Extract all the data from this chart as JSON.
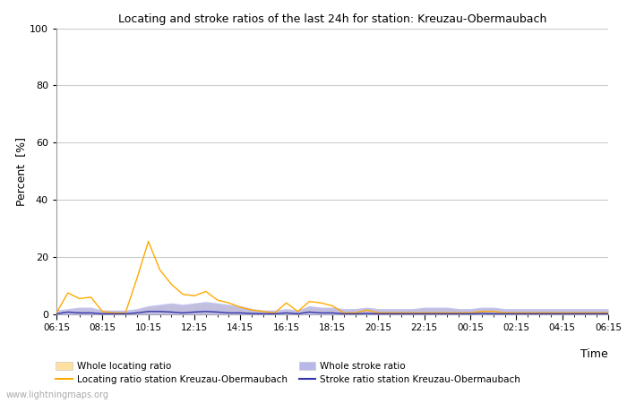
{
  "title": "Locating and stroke ratios of the last 24h for station: Kreuzau-Obermaubach",
  "xlabel": "Time",
  "ylabel": "Percent  [%]",
  "watermark": "www.lightningmaps.org",
  "x_ticks": [
    "06:15",
    "08:15",
    "10:15",
    "12:15",
    "14:15",
    "16:15",
    "18:15",
    "20:15",
    "22:15",
    "00:15",
    "02:15",
    "04:15",
    "06:15"
  ],
  "ylim": [
    0,
    100
  ],
  "yticks": [
    0,
    20,
    40,
    60,
    80,
    100
  ],
  "background_color": "#ffffff",
  "plot_bg_color": "#ffffff",
  "grid_color": "#cccccc",
  "locating_line_color": "#ffaa00",
  "locating_fill_color": "#ffe0a0",
  "stroke_line_color": "#3333aa",
  "stroke_fill_color": "#b8b8e8",
  "locating_station": [
    0.5,
    7.5,
    5.5,
    6.0,
    1.0,
    0.5,
    0.5,
    12.5,
    25.5,
    15.5,
    10.5,
    7.0,
    6.5,
    8.0,
    5.0,
    4.0,
    2.5,
    1.5,
    1.0,
    0.5,
    4.0,
    1.0,
    4.5,
    4.0,
    3.0,
    0.5,
    0.5,
    1.5,
    0.5,
    0.5,
    0.5,
    0.5,
    0.5,
    0.5,
    0.5,
    0.5,
    0.5,
    1.0,
    1.0,
    0.5,
    0.5,
    0.5,
    0.5,
    0.5,
    0.5,
    0.5,
    0.5,
    0.5,
    0.5
  ],
  "locating_whole": [
    0.5,
    1.0,
    1.5,
    1.5,
    1.0,
    0.5,
    0.5,
    1.5,
    2.5,
    3.0,
    3.5,
    3.0,
    3.5,
    4.0,
    3.5,
    3.0,
    2.5,
    1.5,
    1.0,
    0.5,
    1.5,
    1.0,
    2.5,
    2.0,
    2.0,
    1.5,
    1.5,
    2.0,
    1.5,
    1.5,
    1.5,
    1.5,
    2.0,
    2.0,
    2.0,
    1.5,
    1.5,
    2.0,
    2.0,
    1.5,
    1.5,
    1.5,
    1.5,
    1.5,
    1.5,
    1.5,
    1.5,
    1.5,
    1.5
  ],
  "stroke_station": [
    0.2,
    0.8,
    0.5,
    0.5,
    0.2,
    0.2,
    0.2,
    0.5,
    1.0,
    1.0,
    0.8,
    0.5,
    0.8,
    1.0,
    0.8,
    0.5,
    0.5,
    0.3,
    0.2,
    0.2,
    0.5,
    0.2,
    0.8,
    0.5,
    0.5,
    0.2,
    0.2,
    0.3,
    0.2,
    0.2,
    0.2,
    0.2,
    0.2,
    0.2,
    0.2,
    0.2,
    0.2,
    0.3,
    0.2,
    0.2,
    0.2,
    0.2,
    0.2,
    0.2,
    0.2,
    0.2,
    0.2,
    0.2,
    0.2
  ],
  "stroke_whole": [
    1.5,
    2.0,
    2.5,
    2.5,
    1.5,
    1.5,
    1.5,
    2.0,
    3.0,
    3.5,
    4.0,
    3.5,
    4.0,
    4.5,
    4.0,
    3.5,
    3.0,
    2.0,
    1.5,
    1.5,
    2.0,
    1.5,
    3.0,
    2.5,
    2.5,
    2.0,
    2.0,
    2.5,
    2.0,
    2.0,
    2.0,
    2.0,
    2.5,
    2.5,
    2.5,
    2.0,
    2.0,
    2.5,
    2.5,
    2.0,
    2.0,
    2.0,
    2.0,
    2.0,
    2.0,
    2.0,
    2.0,
    2.0,
    2.0
  ],
  "n_points": 49,
  "legend_labels": [
    "Whole locating ratio",
    "Locating ratio station Kreuzau-Obermaubach",
    "Whole stroke ratio",
    "Stroke ratio station Kreuzau-Obermaubach"
  ]
}
